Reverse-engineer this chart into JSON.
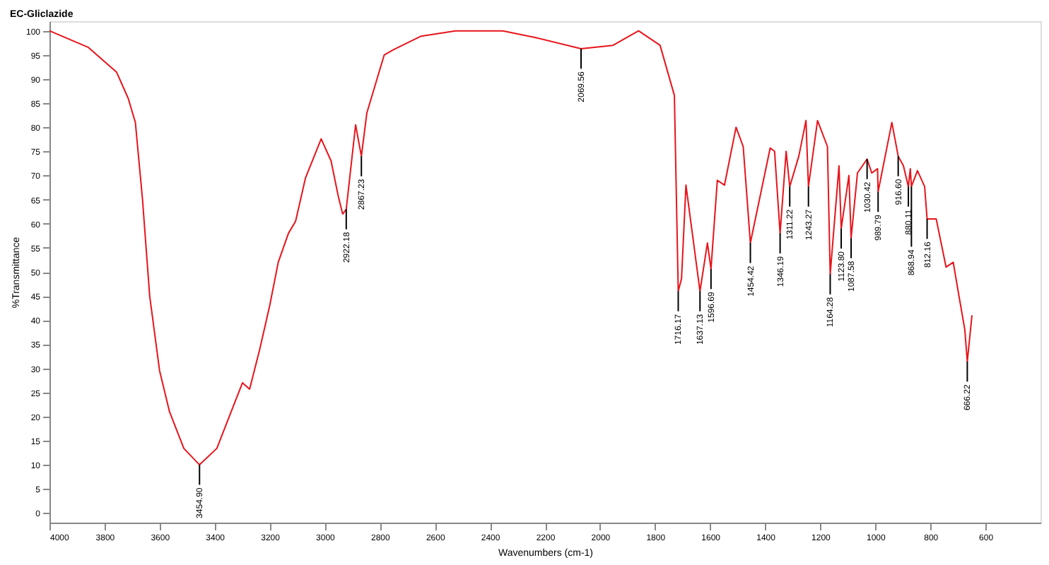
{
  "chart_data": {
    "type": "line",
    "title": "EC-Gliclazide",
    "xlabel": "Wavenumbers (cm-1)",
    "ylabel": "%Transmittance",
    "xlim": [
      4000,
      400
    ],
    "xticks": [
      4000,
      3800,
      3600,
      3400,
      3200,
      3000,
      2800,
      2600,
      2400,
      2200,
      2000,
      1800,
      1600,
      1400,
      1200,
      1000,
      800,
      600
    ],
    "ylim": [
      -2,
      102
    ],
    "yticks": [
      0,
      5,
      10,
      15,
      20,
      25,
      30,
      35,
      40,
      45,
      50,
      55,
      60,
      65,
      70,
      75,
      80,
      85,
      90,
      95,
      100
    ],
    "grid": false,
    "legend": false,
    "marker": "none",
    "line_style": "solid",
    "x": [
      4000,
      3860,
      3756,
      3714,
      3688,
      3662,
      3636,
      3600,
      3564,
      3512,
      3455,
      3392,
      3340,
      3299,
      3273,
      3236,
      3200,
      3169,
      3132,
      3106,
      3070,
      3013,
      2977,
      2951,
      2935,
      2922,
      2888,
      2867,
      2847,
      2784,
      2753,
      2650,
      2525,
      2353,
      2234,
      2069,
      1953,
      1860,
      1782,
      1730,
      1716,
      1704,
      1688,
      1637,
      1610,
      1597,
      1574,
      1548,
      1506,
      1480,
      1454,
      1382,
      1366,
      1346,
      1324,
      1311,
      1278,
      1252,
      1243,
      1210,
      1174,
      1164,
      1132,
      1124,
      1096,
      1088,
      1065,
      1030,
      1013,
      992,
      990,
      940,
      917,
      898,
      880,
      873,
      869,
      847,
      821,
      812,
      779,
      743,
      717,
      701,
      675,
      666,
      649
    ],
    "series": [
      {
        "color": "#e8141b",
        "values": [
          100,
          96.6,
          91.4,
          86,
          81,
          65,
          45,
          29.5,
          21,
          13.4,
          10,
          13.4,
          21,
          27,
          25.7,
          34,
          43,
          52,
          58,
          60.5,
          69.5,
          77.6,
          73,
          65.7,
          62,
          63,
          80.5,
          74,
          83,
          95,
          96,
          98.9,
          100,
          100,
          98.6,
          96.3,
          97,
          100,
          97,
          86.6,
          46,
          48.6,
          68,
          46,
          56,
          50.6,
          69,
          68,
          80,
          76,
          56,
          75.7,
          75,
          58,
          75,
          67.7,
          74,
          81.4,
          67.7,
          81.4,
          76,
          49.5,
          72,
          59,
          70,
          57,
          70.5,
          73.4,
          70.5,
          71.4,
          66.6,
          81,
          74,
          72,
          67.7,
          71.4,
          67.7,
          71,
          67.7,
          61,
          61,
          51,
          52,
          46.6,
          38,
          31.4,
          41
        ]
      }
    ],
    "annotations": [
      {
        "text": "3454.90",
        "x": 3455,
        "y": 10
      },
      {
        "text": "2922.18",
        "x": 2922,
        "y": 63
      },
      {
        "text": "2867.23",
        "x": 2867,
        "y": 74
      },
      {
        "text": "2069.56",
        "x": 2069,
        "y": 96.3
      },
      {
        "text": "1716.17",
        "x": 1716,
        "y": 46
      },
      {
        "text": "1637.13",
        "x": 1637,
        "y": 46
      },
      {
        "text": "1596.69",
        "x": 1597,
        "y": 50.6
      },
      {
        "text": "1454.42",
        "x": 1454,
        "y": 56
      },
      {
        "text": "1346.19",
        "x": 1346,
        "y": 58
      },
      {
        "text": "1311.22",
        "x": 1311,
        "y": 67.7
      },
      {
        "text": "1243.27",
        "x": 1243,
        "y": 67.7
      },
      {
        "text": "1164.28",
        "x": 1164,
        "y": 49.5
      },
      {
        "text": "1123.80",
        "x": 1124,
        "y": 59
      },
      {
        "text": "1087.58",
        "x": 1088,
        "y": 57
      },
      {
        "text": "1030.42",
        "x": 1030,
        "y": 73.4
      },
      {
        "text": "989.79",
        "x": 990,
        "y": 66.6
      },
      {
        "text": "916.60",
        "x": 917,
        "y": 74
      },
      {
        "text": "880.11",
        "x": 880,
        "y": 67.7
      },
      {
        "text": "868.94",
        "x": 869,
        "y": 67.7
      },
      {
        "text": "812.16",
        "x": 812,
        "y": 61
      },
      {
        "text": "666.22",
        "x": 666,
        "y": 31.4
      }
    ]
  }
}
